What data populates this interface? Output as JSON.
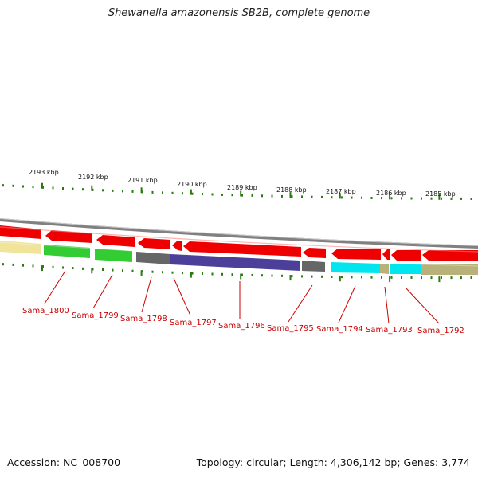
{
  "title": "Shewanella amazonensis SB2B, complete genome",
  "footer": {
    "accession": "Accession: NC_008700",
    "topology": "Topology: circular; Length: 4,306,142 bp; Genes: 3,774"
  },
  "scale_labels": [
    "2193 kbp",
    "2192 kbp",
    "2191 kbp",
    "2190 kbp",
    "2189 kbp",
    "2188 kbp",
    "2187 kbp",
    "2186 kbp",
    "2185 kbp"
  ],
  "gene_labels": [
    "Sama_1800",
    "Sama_1799",
    "Sama_1798",
    "Sama_1797",
    "Sama_1796",
    "Sama_1795",
    "Sama_1794",
    "Sama_1793",
    "Sama_1792"
  ],
  "colors": {
    "forward_strand": "#ee0000",
    "backbone": "#888888",
    "tick": "#2a7a10",
    "label_line": "#cc0000",
    "cog_yellow": "#efe49a",
    "cog_green": "#33cc33",
    "cog_gray": "#666666",
    "cog_purple": "#4b3f9a",
    "cog_cyan": "#00e5ee",
    "cog_olive": "#b8b27a"
  }
}
